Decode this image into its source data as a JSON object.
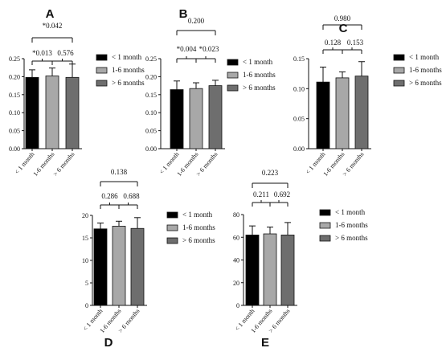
{
  "chart_data": [
    {
      "type": "bar",
      "panel_label": "A",
      "categories": [
        "< 1 month",
        "1-6 months",
        "> 6 months"
      ],
      "values": [
        0.198,
        0.202,
        0.198
      ],
      "errors": [
        0.021,
        0.022,
        0.037
      ],
      "ylim": [
        0,
        0.25
      ],
      "yticks": [
        "0.00",
        "0.05",
        "0.10",
        "0.15",
        "0.20",
        "0.25"
      ],
      "colors": [
        "#000000",
        "#a8a8a8",
        "#6e6e6e"
      ],
      "legend": {
        "position": "right",
        "entries": [
          "< 1 month",
          "1-6 months",
          "> 6 months"
        ]
      },
      "annotations": {
        "pair_1_2": "*0.013",
        "pair_2_3": "0.576",
        "pair_1_3": "*0.042"
      }
    },
    {
      "type": "bar",
      "panel_label": "B",
      "categories": [
        "< 1 month",
        "1-6 months",
        "> 6 months"
      ],
      "values": [
        0.164,
        0.167,
        0.175
      ],
      "errors": [
        0.024,
        0.016,
        0.015
      ],
      "ylim": [
        0,
        0.25
      ],
      "yticks": [
        "0.00",
        "0.05",
        "0.10",
        "0.15",
        "0.20",
        "0.25"
      ],
      "colors": [
        "#000000",
        "#a8a8a8",
        "#6e6e6e"
      ],
      "legend": {
        "position": "right",
        "entries": [
          "< 1 month",
          "1-6 months",
          "> 6 months"
        ]
      },
      "annotations": {
        "pair_1_2": "*0.004",
        "pair_2_3": "*0.023",
        "pair_1_3": "0.200"
      }
    },
    {
      "type": "bar",
      "panel_label": "C",
      "categories": [
        "< 1 month",
        "1-6 months",
        "> 6 months"
      ],
      "values": [
        0.111,
        0.118,
        0.121
      ],
      "errors": [
        0.025,
        0.01,
        0.024
      ],
      "ylim": [
        0,
        0.15
      ],
      "yticks": [
        "0.00",
        "0.05",
        "0.10",
        "0.15"
      ],
      "colors": [
        "#000000",
        "#a8a8a8",
        "#6e6e6e"
      ],
      "legend": {
        "position": "right",
        "entries": [
          "< 1 month",
          "1-6 months",
          "> 6 months"
        ]
      },
      "annotations": {
        "pair_1_2": "0.128",
        "pair_2_3": "0.153",
        "pair_1_3": "0.980"
      }
    },
    {
      "type": "bar",
      "panel_label": "D",
      "categories": [
        "< 1 month",
        "1-6 months",
        "> 6 months"
      ],
      "values": [
        17.0,
        17.6,
        17.1
      ],
      "errors": [
        1.3,
        1.1,
        2.4
      ],
      "ylim": [
        0,
        20
      ],
      "yticks": [
        "0",
        "5",
        "10",
        "15",
        "20"
      ],
      "colors": [
        "#000000",
        "#a8a8a8",
        "#6e6e6e"
      ],
      "legend": {
        "position": "right",
        "entries": [
          "< 1 month",
          "1-6 months",
          "> 6 months"
        ]
      },
      "annotations": {
        "pair_1_2": "0.286",
        "pair_2_3": "0.688",
        "pair_1_3": "0.138"
      }
    },
    {
      "type": "bar",
      "panel_label": "E",
      "categories": [
        "< 1 month",
        "1-6 months",
        "> 6 months"
      ],
      "values": [
        62,
        63,
        62
      ],
      "errors": [
        8,
        6,
        11
      ],
      "ylim": [
        0,
        80
      ],
      "yticks": [
        "0",
        "20",
        "40",
        "60",
        "80"
      ],
      "colors": [
        "#000000",
        "#a8a8a8",
        "#6e6e6e"
      ],
      "legend": {
        "position": "right",
        "entries": [
          "< 1 month",
          "1-6 months",
          "> 6 months"
        ]
      },
      "annotations": {
        "pair_1_2": "0.211",
        "pair_2_3": "0.692",
        "pair_1_3": "0.223"
      }
    }
  ]
}
